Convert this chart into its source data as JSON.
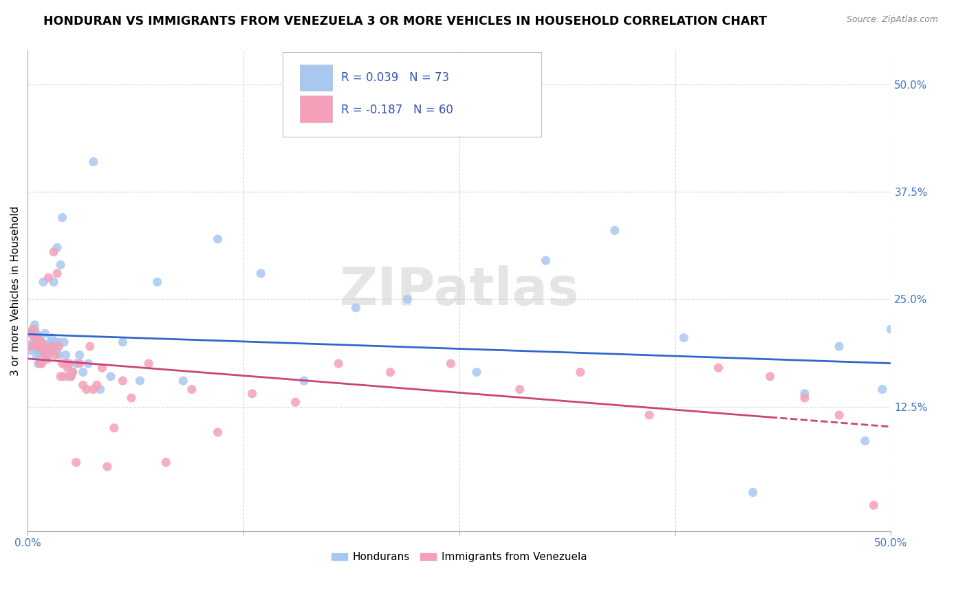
{
  "title": "HONDURAN VS IMMIGRANTS FROM VENEZUELA 3 OR MORE VEHICLES IN HOUSEHOLD CORRELATION CHART",
  "source": "Source: ZipAtlas.com",
  "ylabel": "3 or more Vehicles in Household",
  "xlim": [
    0.0,
    0.5
  ],
  "ylim": [
    -0.02,
    0.54
  ],
  "legend_label1": "Hondurans",
  "legend_label2": "Immigrants from Venezuela",
  "R1": 0.039,
  "N1": 73,
  "R2": -0.187,
  "N2": 60,
  "color_blue": "#A8C8F0",
  "color_pink": "#F4A0B8",
  "line_color_blue": "#3366CC",
  "line_color_pink": "#CC4477",
  "watermark": "ZIPatlas",
  "title_fontsize": 12.5,
  "axis_label_fontsize": 11,
  "tick_fontsize": 11,
  "hondurans_x": [
    0.001,
    0.002,
    0.002,
    0.003,
    0.003,
    0.004,
    0.004,
    0.004,
    0.005,
    0.005,
    0.005,
    0.006,
    0.006,
    0.006,
    0.007,
    0.007,
    0.007,
    0.008,
    0.008,
    0.008,
    0.009,
    0.009,
    0.01,
    0.01,
    0.01,
    0.011,
    0.011,
    0.012,
    0.012,
    0.013,
    0.013,
    0.014,
    0.015,
    0.015,
    0.016,
    0.016,
    0.017,
    0.018,
    0.018,
    0.019,
    0.02,
    0.021,
    0.022,
    0.023,
    0.024,
    0.025,
    0.026,
    0.028,
    0.03,
    0.032,
    0.035,
    0.038,
    0.042,
    0.048,
    0.055,
    0.065,
    0.075,
    0.09,
    0.11,
    0.135,
    0.16,
    0.19,
    0.22,
    0.26,
    0.3,
    0.34,
    0.38,
    0.42,
    0.45,
    0.47,
    0.485,
    0.495,
    0.5
  ],
  "hondurans_y": [
    0.19,
    0.21,
    0.195,
    0.215,
    0.2,
    0.195,
    0.215,
    0.22,
    0.185,
    0.2,
    0.21,
    0.19,
    0.205,
    0.175,
    0.195,
    0.2,
    0.185,
    0.195,
    0.2,
    0.195,
    0.27,
    0.195,
    0.195,
    0.21,
    0.19,
    0.185,
    0.195,
    0.195,
    0.185,
    0.195,
    0.2,
    0.205,
    0.195,
    0.27,
    0.19,
    0.2,
    0.31,
    0.185,
    0.2,
    0.29,
    0.345,
    0.2,
    0.185,
    0.175,
    0.16,
    0.16,
    0.165,
    0.175,
    0.185,
    0.165,
    0.175,
    0.41,
    0.145,
    0.16,
    0.2,
    0.155,
    0.27,
    0.155,
    0.32,
    0.28,
    0.155,
    0.24,
    0.25,
    0.165,
    0.295,
    0.33,
    0.205,
    0.025,
    0.14,
    0.195,
    0.085,
    0.145,
    0.215
  ],
  "venezuela_x": [
    0.001,
    0.002,
    0.003,
    0.004,
    0.005,
    0.005,
    0.006,
    0.006,
    0.007,
    0.007,
    0.008,
    0.008,
    0.009,
    0.01,
    0.01,
    0.011,
    0.012,
    0.013,
    0.014,
    0.015,
    0.016,
    0.017,
    0.018,
    0.019,
    0.02,
    0.021,
    0.022,
    0.023,
    0.024,
    0.025,
    0.026,
    0.028,
    0.03,
    0.032,
    0.034,
    0.036,
    0.038,
    0.04,
    0.043,
    0.046,
    0.05,
    0.055,
    0.06,
    0.07,
    0.08,
    0.095,
    0.11,
    0.13,
    0.155,
    0.18,
    0.21,
    0.245,
    0.285,
    0.32,
    0.36,
    0.4,
    0.43,
    0.45,
    0.47,
    0.49
  ],
  "venezuela_y": [
    0.195,
    0.21,
    0.215,
    0.205,
    0.205,
    0.195,
    0.195,
    0.205,
    0.175,
    0.195,
    0.175,
    0.2,
    0.19,
    0.195,
    0.185,
    0.18,
    0.275,
    0.19,
    0.195,
    0.305,
    0.185,
    0.28,
    0.195,
    0.16,
    0.175,
    0.16,
    0.175,
    0.17,
    0.175,
    0.16,
    0.165,
    0.06,
    0.175,
    0.15,
    0.145,
    0.195,
    0.145,
    0.15,
    0.17,
    0.055,
    0.1,
    0.155,
    0.135,
    0.175,
    0.06,
    0.145,
    0.095,
    0.14,
    0.13,
    0.175,
    0.165,
    0.175,
    0.145,
    0.165,
    0.115,
    0.17,
    0.16,
    0.135,
    0.115,
    0.01
  ]
}
